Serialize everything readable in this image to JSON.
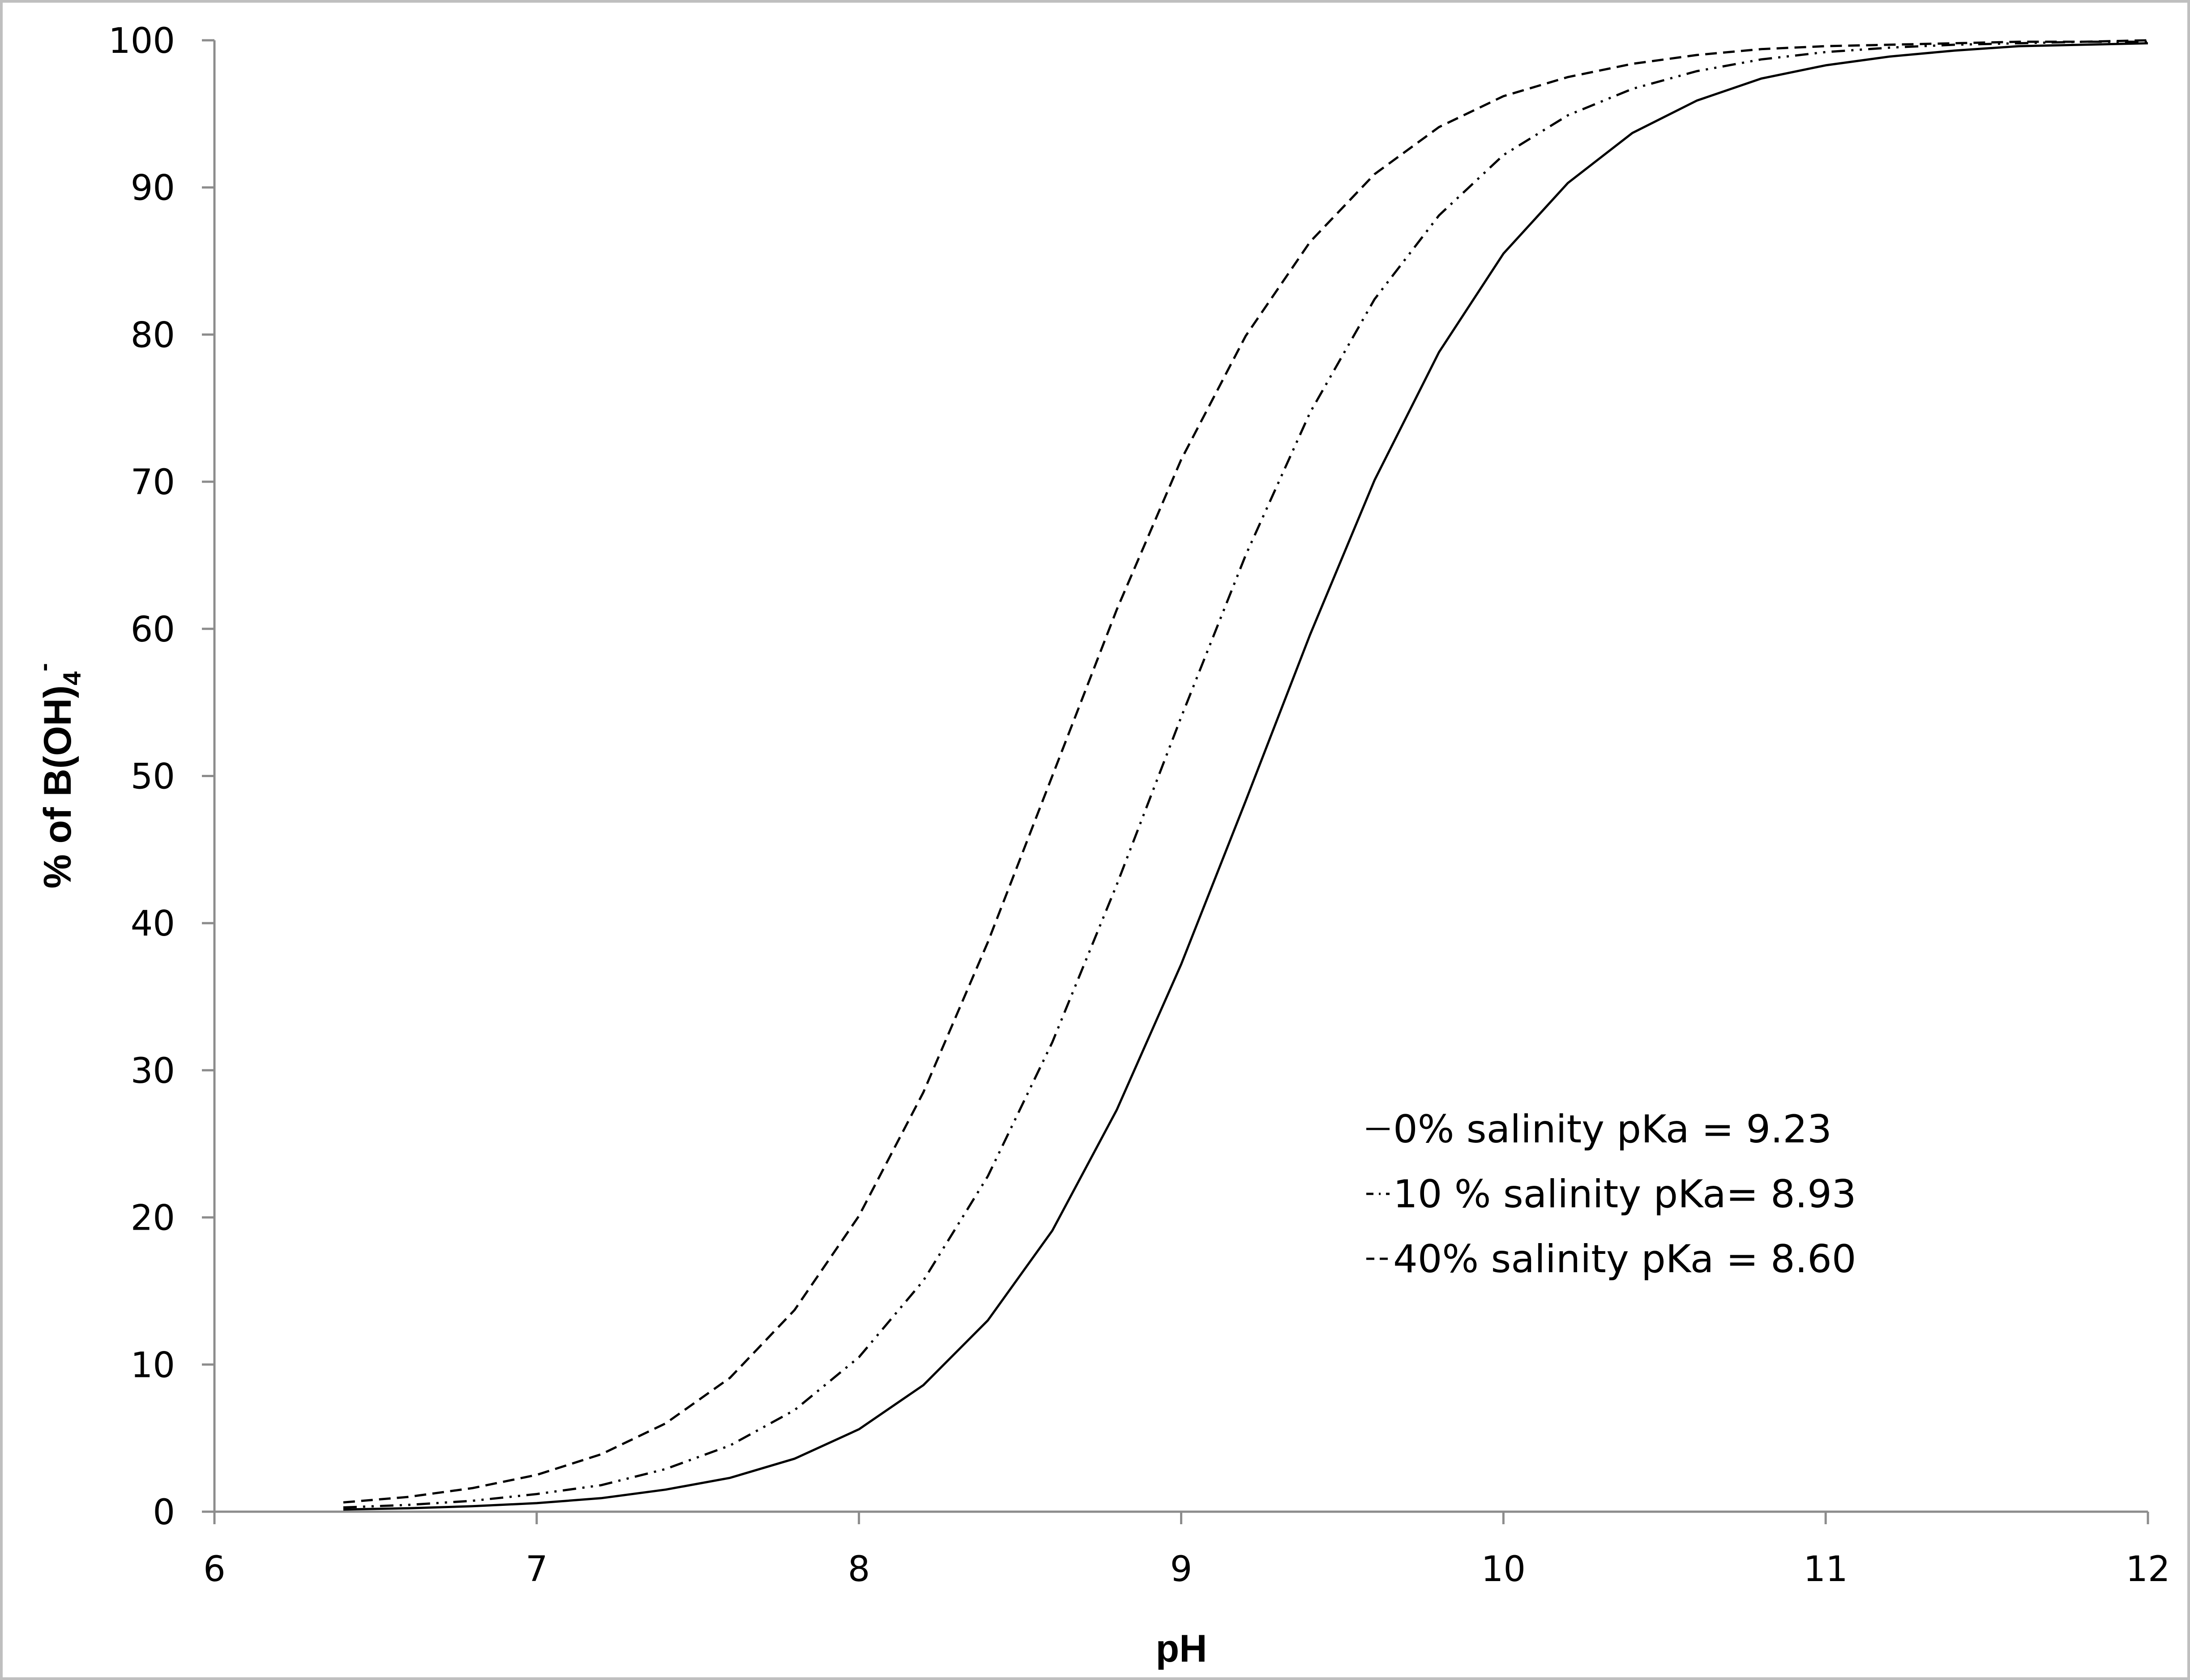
{
  "chart_data": {
    "type": "line",
    "xlabel": "pH",
    "ylabel": "% of B(OH)",
    "ylabel_sub": "4",
    "ylabel_sup": "-",
    "xlim": [
      6,
      12
    ],
    "ylim": [
      0,
      100
    ],
    "x_ticks": [
      6,
      7,
      8,
      9,
      10,
      11,
      12
    ],
    "y_ticks": [
      0,
      10,
      20,
      30,
      40,
      50,
      60,
      70,
      80,
      90,
      100
    ],
    "grid": false,
    "legend_position": "lower-right",
    "line_color": "#000000",
    "series": [
      {
        "name": "0% salinity pKa = 9.23",
        "style": "solid",
        "x": [
          6.4,
          6.6,
          6.8,
          7.0,
          7.2,
          7.4,
          7.6,
          7.8,
          8.0,
          8.2,
          8.4,
          8.6,
          8.8,
          9.0,
          9.2,
          9.4,
          9.6,
          9.8,
          10.0,
          10.2,
          10.4,
          10.6,
          10.8,
          11.0,
          11.2,
          11.4,
          11.6,
          11.8,
          12.0
        ],
        "y": [
          0.15,
          0.23,
          0.37,
          0.58,
          0.92,
          1.5,
          2.3,
          3.6,
          5.6,
          8.6,
          13.0,
          19.1,
          27.3,
          37.2,
          48.3,
          59.6,
          70.1,
          78.8,
          85.5,
          90.3,
          93.7,
          95.9,
          97.4,
          98.3,
          98.9,
          99.3,
          99.6,
          99.7,
          99.8
        ]
      },
      {
        "name": "10 % salinity pKa= 8.93",
        "style": "dash-dot-dot",
        "x": [
          6.4,
          6.6,
          6.8,
          7.0,
          7.2,
          7.4,
          7.6,
          7.8,
          8.0,
          8.2,
          8.4,
          8.6,
          8.8,
          9.0,
          9.2,
          9.4,
          9.6,
          9.8,
          10.0,
          10.2,
          10.4,
          10.6,
          10.8,
          11.0,
          11.2,
          11.4,
          11.6,
          11.8,
          12.0
        ],
        "y": [
          0.29,
          0.46,
          0.74,
          1.2,
          1.8,
          2.9,
          4.5,
          6.9,
          10.5,
          15.7,
          22.8,
          31.9,
          42.6,
          54.0,
          65.0,
          74.7,
          82.4,
          88.1,
          92.2,
          94.9,
          96.7,
          97.9,
          98.7,
          99.2,
          99.5,
          99.7,
          99.8,
          99.9,
          99.9
        ]
      },
      {
        "name": "40% salinity pKa = 8.60",
        "style": "dashed",
        "x": [
          6.4,
          6.6,
          6.8,
          7.0,
          7.2,
          7.4,
          7.6,
          7.8,
          8.0,
          8.2,
          8.4,
          8.6,
          8.8,
          9.0,
          9.2,
          9.4,
          9.6,
          9.8,
          10.0,
          10.2,
          10.4,
          10.6,
          10.8,
          11.0,
          11.2,
          11.4,
          11.6,
          11.8,
          12.0
        ],
        "y": [
          0.63,
          1.0,
          1.6,
          2.5,
          3.9,
          6.0,
          9.1,
          13.7,
          20.1,
          28.5,
          38.7,
          50.0,
          61.3,
          71.5,
          79.9,
          86.3,
          90.9,
          94.1,
          96.2,
          97.5,
          98.4,
          99.0,
          99.4,
          99.6,
          99.7,
          99.8,
          99.9,
          99.9,
          100.0
        ]
      }
    ]
  }
}
